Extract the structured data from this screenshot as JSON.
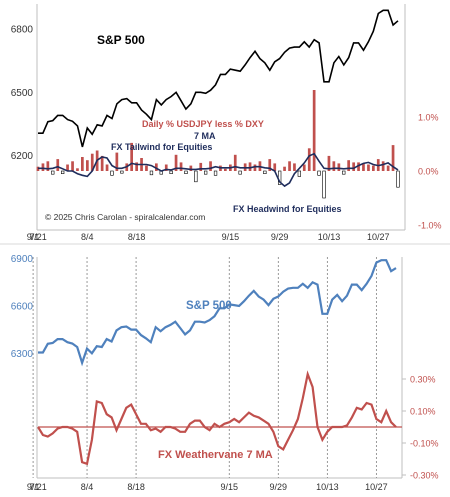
{
  "chart_data": [
    {
      "type": "line",
      "panel": "top",
      "x": [
        "7/21",
        "7/22",
        "7/23",
        "7/24",
        "7/25",
        "7/28",
        "7/29",
        "7/30",
        "7/31",
        "8/1",
        "8/4",
        "8/5",
        "8/6",
        "8/7",
        "8/8",
        "8/11",
        "8/12",
        "8/13",
        "8/14",
        "8/15",
        "8/18",
        "8/19",
        "8/20",
        "8/21",
        "8/22",
        "8/25",
        "8/26",
        "8/27",
        "8/28",
        "8/29",
        "9/2",
        "9/3",
        "9/4",
        "9/5",
        "9/8",
        "9/9",
        "9/10",
        "9/11",
        "9/12",
        "9/15",
        "9/16",
        "9/17",
        "9/18",
        "9/19",
        "9/22",
        "9/23",
        "9/24",
        "9/25",
        "9/26",
        "9/29",
        "9/30",
        "10/1",
        "10/2",
        "10/3",
        "10/6",
        "10/7",
        "10/8",
        "10/9",
        "10/10",
        "10/13",
        "10/14",
        "10/15",
        "10/16",
        "10/17",
        "10/20",
        "10/21",
        "10/22",
        "10/23",
        "10/24",
        "10/27",
        "10/28",
        "10/29",
        "10/30",
        "10/31"
      ],
      "x_ticks": [
        "7/21",
        "8/4",
        "8/18",
        "9/1",
        "9/15",
        "9/29",
        "10/13",
        "10/27"
      ],
      "series": [
        {
          "name": "S&P 500",
          "axis": "left",
          "color": "#000000",
          "values": [
            6305,
            6305,
            6360,
            6365,
            6390,
            6390,
            6370,
            6362,
            6340,
            6240,
            6330,
            6300,
            6345,
            6340,
            6390,
            6375,
            6445,
            6465,
            6470,
            6450,
            6450,
            6415,
            6395,
            6370,
            6465,
            6440,
            6465,
            6480,
            6500,
            6460,
            6420,
            6445,
            6500,
            6500,
            6495,
            6510,
            6535,
            6585,
            6585,
            6610,
            6605,
            6600,
            6630,
            6665,
            6695,
            6660,
            6640,
            6605,
            6645,
            6660,
            6690,
            6710,
            6715,
            6715,
            6740,
            6715,
            6750,
            6735,
            6550,
            6550,
            6640,
            6670,
            6630,
            6665,
            6735,
            6735,
            6700,
            6740,
            6790,
            6875,
            6890,
            6890,
            6820,
            6840
          ]
        },
        {
          "name": "Daily % USDJPY less % DXY",
          "axis": "right",
          "color": "#c0504d",
          "values": [
            0.08,
            0.14,
            0.18,
            -0.06,
            0.22,
            -0.05,
            0.12,
            0.18,
            0.05,
            0.26,
            0.2,
            0.32,
            0.38,
            0.28,
            0.12,
            -0.08,
            0.34,
            -0.04,
            0.14,
            0.52,
            0.16,
            0.24,
            0.1,
            -0.07,
            0.14,
            -0.06,
            0.12,
            -0.05,
            0.3,
            0.16,
            -0.05,
            0.1,
            -0.2,
            0.15,
            -0.06,
            0.18,
            -0.08,
            0.1,
            0.04,
            0.12,
            0.3,
            -0.06,
            0.14,
            0.16,
            0.12,
            0.18,
            -0.05,
            0.22,
            0.14,
            -0.25,
            0.08,
            0.18,
            0.14,
            -0.1,
            0.12,
            0.42,
            1.5,
            -0.08,
            -0.5,
            0.28,
            0.18,
            0.14,
            -0.06,
            0.2,
            0.16,
            0.16,
            0.14,
            0.12,
            0.1,
            0.22,
            0.18,
            0.1,
            0.48,
            -0.3
          ]
        },
        {
          "name": "7 MA",
          "axis": "right",
          "color": "#1f2d5c",
          "values": [
            0.05,
            0.05,
            0.04,
            0.05,
            0.08,
            0.04,
            0.0,
            0.0,
            -0.05,
            -0.08,
            -0.1,
            0.0,
            0.2,
            0.26,
            0.24,
            0.1,
            0.05,
            0.05,
            0.08,
            0.14,
            0.12,
            0.12,
            0.12,
            0.1,
            0.05,
            0.0,
            0.03,
            0.02,
            0.05,
            0.05,
            0.04,
            0.03,
            0.03,
            0.04,
            0.04,
            0.05,
            0.08,
            0.06,
            0.06,
            0.06,
            0.08,
            0.06,
            0.06,
            0.06,
            0.08,
            0.08,
            0.06,
            0.05,
            0.0,
            -0.2,
            -0.28,
            -0.22,
            -0.05,
            0.05,
            0.15,
            0.28,
            0.32,
            0.18,
            0.05,
            0.04,
            0.05,
            0.05,
            0.04,
            0.05,
            0.05,
            0.1,
            0.14,
            0.16,
            0.12,
            0.1,
            0.12,
            0.15,
            0.08,
            0.02
          ]
        }
      ],
      "yticks_left": [
        6200,
        6500,
        6800
      ],
      "yticks_right": [
        "1.0%",
        "0.0%",
        "-1.0%"
      ],
      "ylim_left": [
        5835,
        6920
      ],
      "ylim_right": [
        -1.0,
        1.0
      ],
      "annotations": {
        "price_label": "S&P 500",
        "fx_label": "Daily % USDJPY less % DXY",
        "ma_label": "7 MA",
        "tailwind": "FX Tailwind for Equities",
        "headwind": "FX Headwind for Equities",
        "copyright": "© 2025 Chris Carolan - spiralcalendar.com"
      }
    },
    {
      "type": "line",
      "panel": "bottom",
      "x": [
        "7/21",
        "7/22",
        "7/23",
        "7/24",
        "7/25",
        "7/28",
        "7/29",
        "7/30",
        "7/31",
        "8/1",
        "8/4",
        "8/5",
        "8/6",
        "8/7",
        "8/8",
        "8/11",
        "8/12",
        "8/13",
        "8/14",
        "8/15",
        "8/18",
        "8/19",
        "8/20",
        "8/21",
        "8/22",
        "8/25",
        "8/26",
        "8/27",
        "8/28",
        "8/29",
        "9/2",
        "9/3",
        "9/4",
        "9/5",
        "9/8",
        "9/9",
        "9/10",
        "9/11",
        "9/12",
        "9/15",
        "9/16",
        "9/17",
        "9/18",
        "9/19",
        "9/22",
        "9/23",
        "9/24",
        "9/25",
        "9/26",
        "9/29",
        "9/30",
        "10/1",
        "10/2",
        "10/3",
        "10/6",
        "10/7",
        "10/8",
        "10/9",
        "10/10",
        "10/13",
        "10/14",
        "10/15",
        "10/16",
        "10/17",
        "10/20",
        "10/21",
        "10/22",
        "10/23",
        "10/24",
        "10/27",
        "10/28",
        "10/29",
        "10/30",
        "10/31"
      ],
      "x_ticks": [
        "7/21",
        "8/4",
        "8/18",
        "9/1",
        "9/15",
        "9/29",
        "10/13",
        "10/27"
      ],
      "series": [
        {
          "name": "S&P 500",
          "axis": "left",
          "color": "#4f81bd",
          "values": [
            6305,
            6305,
            6360,
            6365,
            6390,
            6390,
            6370,
            6362,
            6340,
            6240,
            6330,
            6300,
            6345,
            6340,
            6390,
            6375,
            6445,
            6465,
            6470,
            6450,
            6450,
            6415,
            6395,
            6370,
            6465,
            6440,
            6465,
            6480,
            6500,
            6460,
            6420,
            6445,
            6500,
            6500,
            6495,
            6510,
            6535,
            6585,
            6585,
            6610,
            6605,
            6600,
            6630,
            6665,
            6695,
            6660,
            6640,
            6605,
            6645,
            6660,
            6690,
            6710,
            6715,
            6715,
            6740,
            6715,
            6750,
            6735,
            6550,
            6550,
            6640,
            6670,
            6630,
            6665,
            6735,
            6735,
            6700,
            6740,
            6790,
            6875,
            6890,
            6890,
            6820,
            6840
          ]
        },
        {
          "name": "FX Weathervane 7 MA",
          "axis": "right",
          "color": "#c0504d",
          "values": [
            0.0,
            -0.05,
            -0.06,
            -0.04,
            -0.01,
            0.0,
            0.0,
            -0.01,
            -0.03,
            -0.22,
            -0.23,
            -0.08,
            0.16,
            0.15,
            0.08,
            0.06,
            -0.02,
            0.05,
            0.12,
            0.14,
            0.08,
            0.02,
            0.02,
            -0.02,
            -0.01,
            -0.03,
            0.0,
            0.0,
            -0.01,
            -0.03,
            -0.03,
            0.02,
            0.04,
            0.04,
            0.0,
            -0.02,
            0.02,
            0.0,
            0.02,
            0.03,
            0.05,
            0.03,
            0.06,
            0.09,
            0.07,
            0.06,
            0.04,
            0.02,
            -0.03,
            -0.12,
            -0.14,
            -0.08,
            -0.02,
            0.05,
            0.18,
            0.33,
            0.25,
            0.0,
            -0.08,
            -0.03,
            0.0,
            0.0,
            0.0,
            0.01,
            0.06,
            0.12,
            0.11,
            0.15,
            0.14,
            0.05,
            0.03,
            0.1,
            0.03,
            0.0
          ]
        }
      ],
      "zero_line": 0,
      "yticks_left": [
        6300,
        6600,
        6900
      ],
      "yticks_right": [
        "0.30%",
        "0.10%",
        "-0.10%",
        "-0.30%"
      ],
      "ylim_left": [
        5510,
        6910
      ],
      "ylim_right": [
        -0.3,
        0.4
      ],
      "annotations": {
        "price_label": "S&P 500",
        "fx_label": "FX Weathervane 7 MA"
      }
    }
  ]
}
